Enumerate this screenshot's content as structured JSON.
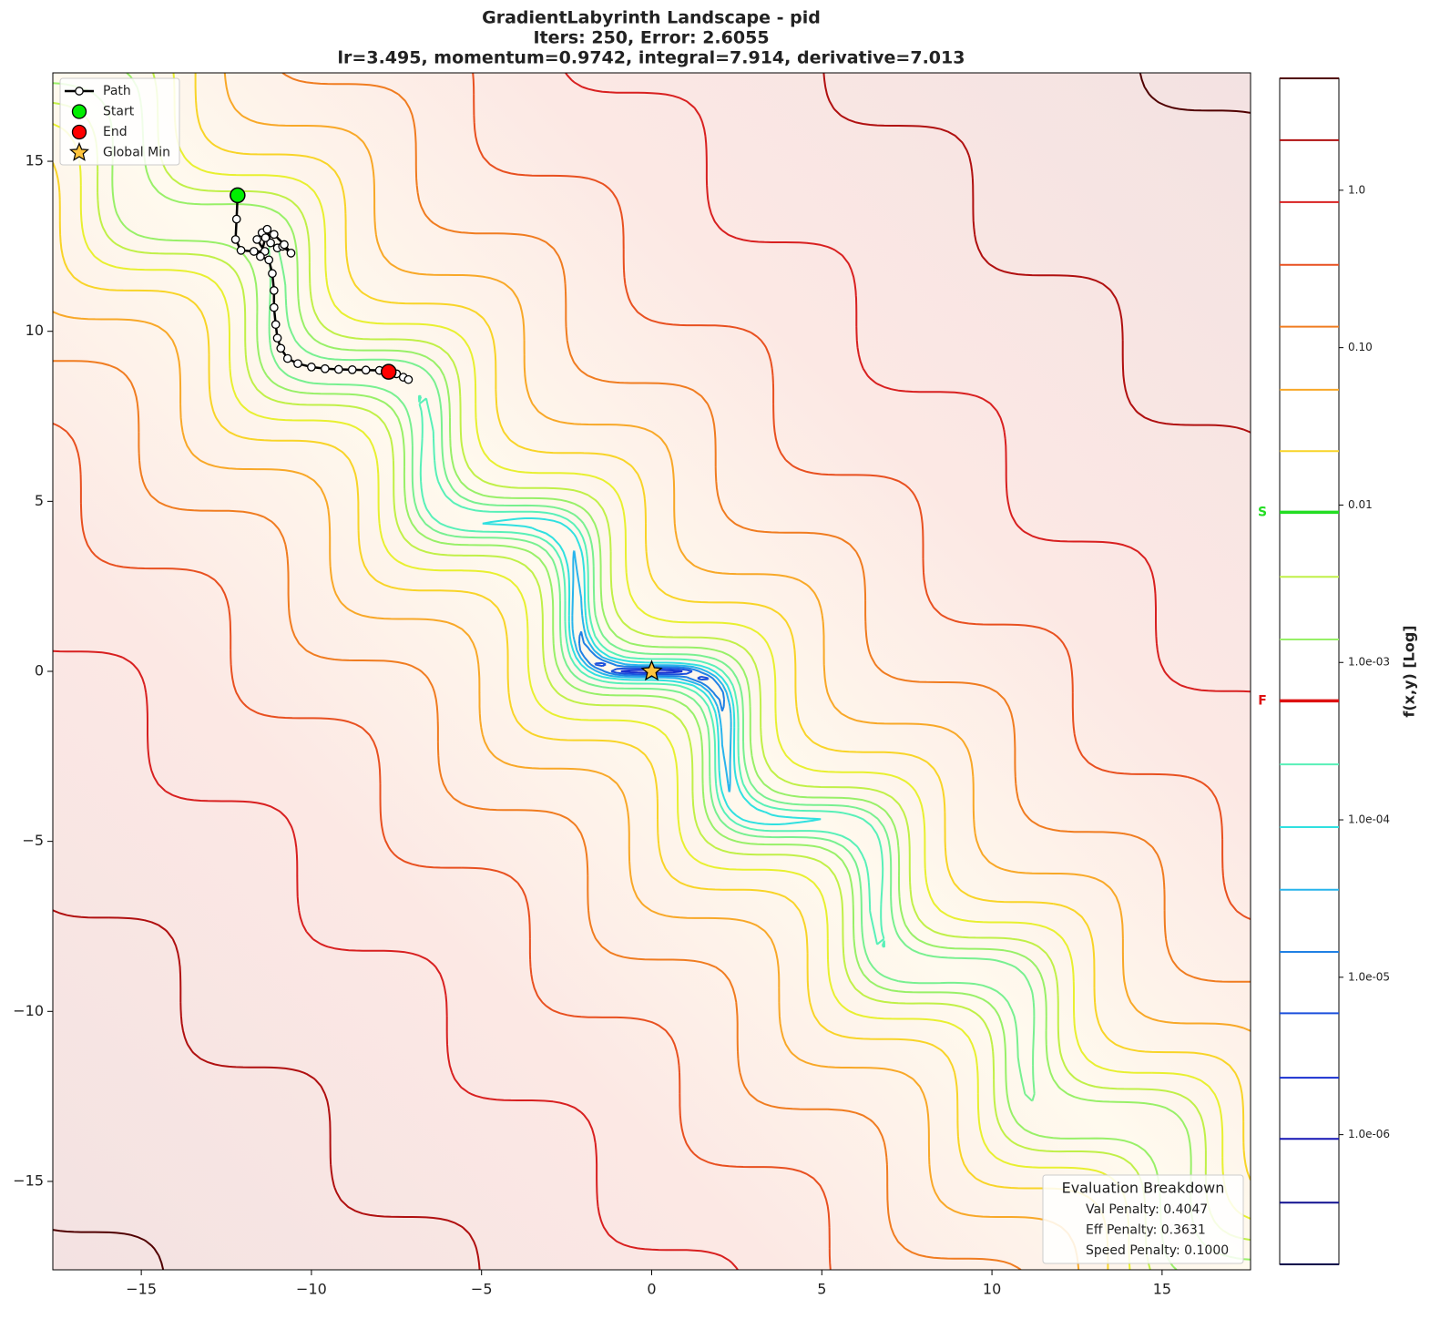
{
  "chart_data": {
    "type": "contour",
    "title": "GradientLabyrinth Landscape - pid",
    "subtitle": [
      "Iters: 250, Error: 2.6055",
      "lr=3.495, momentum=0.9742, integral=7.914, derivative=7.013"
    ],
    "xlim": [
      -17.6,
      17.6
    ],
    "ylim": [
      -17.6,
      17.6
    ],
    "xticks": [
      {
        "value": -15,
        "label": "−15"
      },
      {
        "value": -10,
        "label": "−10"
      },
      {
        "value": -5,
        "label": "−5"
      },
      0,
      5,
      10,
      15
    ],
    "yticks": [
      {
        "value": -15,
        "label": "−15"
      },
      {
        "value": -10,
        "label": "−10"
      },
      {
        "value": -5,
        "label": "−5"
      },
      0,
      5,
      10,
      15
    ],
    "series": [
      {
        "name": "Path",
        "color": "#000000",
        "x": [
          -12.17,
          -12.2,
          -12.23,
          -12.07,
          -11.69,
          -11.37,
          -11.6,
          -11.45,
          -11.3,
          -11.2,
          -11.0,
          -10.85,
          -10.6,
          -10.8,
          -11.1,
          -11.35,
          -11.5,
          -11.25,
          -11.15,
          -11.1,
          -11.1,
          -11.05,
          -11.0,
          -10.9,
          -10.7,
          -10.4,
          -10.0,
          -9.6,
          -9.2,
          -8.8,
          -8.4,
          -8.0,
          -7.73,
          -7.5,
          -7.3,
          -7.15
        ],
        "y": [
          14.0,
          13.3,
          12.7,
          12.38,
          12.35,
          12.35,
          12.7,
          12.9,
          13.0,
          12.6,
          12.45,
          12.5,
          12.3,
          12.55,
          12.85,
          12.75,
          12.2,
          12.1,
          11.7,
          11.2,
          10.7,
          10.2,
          9.8,
          9.5,
          9.2,
          9.05,
          8.95,
          8.9,
          8.88,
          8.87,
          8.86,
          8.85,
          8.81,
          8.75,
          8.65,
          8.58
        ]
      }
    ],
    "markers": [
      {
        "name": "Start",
        "color": "#00ee00",
        "x": -12.17,
        "y": 14.0
      },
      {
        "name": "End",
        "color": "#ff0000",
        "x": -7.73,
        "y": 8.81
      },
      {
        "name": "Global Min",
        "color": "#ffc43d",
        "x": 0,
        "y": 0
      }
    ],
    "legend": "upper left",
    "colorbar": {
      "label": "f(x,y) [Log]",
      "scale": "log",
      "lim": [
        1.5e-07,
        5.14
      ],
      "ticks": [
        {
          "value": 1e-06,
          "label": "1.0e-06"
        },
        {
          "value": 1e-05,
          "label": "1.0e-05"
        },
        {
          "value": 0.0001,
          "label": "1.0e-04"
        },
        {
          "value": 0.001,
          "label": "1.0e-03"
        },
        {
          "value": 0.01,
          "label": "0.01"
        },
        {
          "value": 0.1,
          "label": "0.10"
        },
        {
          "value": 1,
          "label": "1.0"
        }
      ],
      "levels": [
        1.5e-07,
        3.7e-07,
        9.4e-07,
        2.3e-06,
        5.9e-06,
        1.45e-05,
        3.6e-05,
        9e-05,
        0.000225,
        0.00057,
        0.0014,
        0.0035,
        0.009,
        0.022,
        0.054,
        0.136,
        0.336,
        0.84,
        2.08,
        5.14
      ],
      "level_colors": [
        "#00004a",
        "#101090",
        "#1414b4",
        "#1830d0",
        "#1c50dc",
        "#2080e4",
        "#28b4ec",
        "#30e0e0",
        "#58f0b8",
        "#78f090",
        "#98f068",
        "#c0f048",
        "#e8f030",
        "#f8d428",
        "#f8a828",
        "#f07c20",
        "#e85020",
        "#d82020",
        "#b01010",
        "#500000"
      ],
      "flags": [
        {
          "label": "S",
          "value": 0.009,
          "color": "#22dd22"
        },
        {
          "label": "F",
          "value": 0.00057,
          "color": "#dd1111"
        }
      ]
    },
    "annotation": {
      "title": "Evaluation Breakdown",
      "lines": [
        "Val Penalty: 0.4047",
        "Eff Penalty: 0.3631",
        "Speed Penalty: 0.1000"
      ]
    }
  }
}
